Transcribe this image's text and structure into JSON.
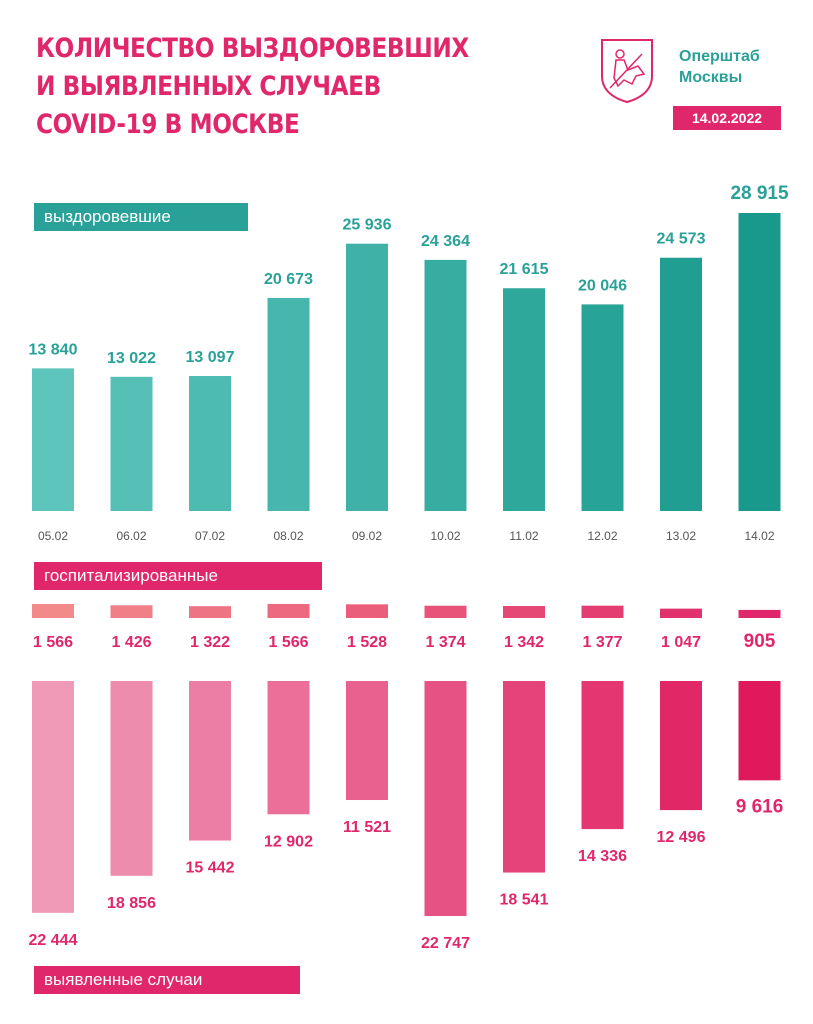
{
  "header": {
    "title_lines": [
      "КОЛИЧЕСТВО ВЫЗДОРОВЕВШИХ",
      "И ВЫЯВЛЕННЫХ СЛУЧАЕВ",
      "COVID-19 В МОСКВЕ"
    ],
    "org_lines": [
      "Оперштаб",
      "Москвы"
    ],
    "date": "14.02.2022",
    "logo_icon": "moscow-coat-of-arms-icon"
  },
  "labels": {
    "recovered": "выздоровевшие",
    "hospitalized": "госпитализированные",
    "detected": "выявленные случаи"
  },
  "colors": {
    "accent_pink": "#e0276b",
    "accent_teal": "#2aa198"
  },
  "chart_data": [
    {
      "type": "bar",
      "name": "выздоровевшие",
      "categories": [
        "05.02",
        "06.02",
        "07.02",
        "08.02",
        "09.02",
        "10.02",
        "11.02",
        "12.02",
        "13.02",
        "14.02"
      ],
      "values": [
        13840,
        13022,
        13097,
        20673,
        25936,
        24364,
        21615,
        20046,
        24573,
        28915
      ],
      "value_labels": [
        "13 840",
        "13 022",
        "13 097",
        "20 673",
        "25 936",
        "24 364",
        "21 615",
        "20 046",
        "24 573",
        "28 915"
      ],
      "ylim": [
        0,
        28915
      ],
      "grid": false
    },
    {
      "type": "bar",
      "name": "госпитализированные",
      "categories": [
        "05.02",
        "06.02",
        "07.02",
        "08.02",
        "09.02",
        "10.02",
        "11.02",
        "12.02",
        "13.02",
        "14.02"
      ],
      "values": [
        1566,
        1426,
        1322,
        1566,
        1528,
        1374,
        1342,
        1377,
        1047,
        905
      ],
      "value_labels": [
        "1 566",
        "1 426",
        "1 322",
        "1 566",
        "1 528",
        "1 374",
        "1 342",
        "1 377",
        "1 047",
        "905"
      ],
      "ylim": [
        0,
        1566
      ],
      "grid": false
    },
    {
      "type": "bar",
      "name": "выявленные случаи",
      "categories": [
        "05.02",
        "06.02",
        "07.02",
        "08.02",
        "09.02",
        "10.02",
        "11.02",
        "12.02",
        "13.02",
        "14.02"
      ],
      "values": [
        22444,
        18856,
        15442,
        12902,
        11521,
        22747,
        18541,
        14336,
        12496,
        9616
      ],
      "value_labels": [
        "22 444",
        "18 856",
        "15 442",
        "12 902",
        "11 521",
        "22 747",
        "18 541",
        "14 336",
        "12 496",
        "9 616"
      ],
      "ylim": [
        0,
        22747
      ],
      "grid": false
    }
  ]
}
